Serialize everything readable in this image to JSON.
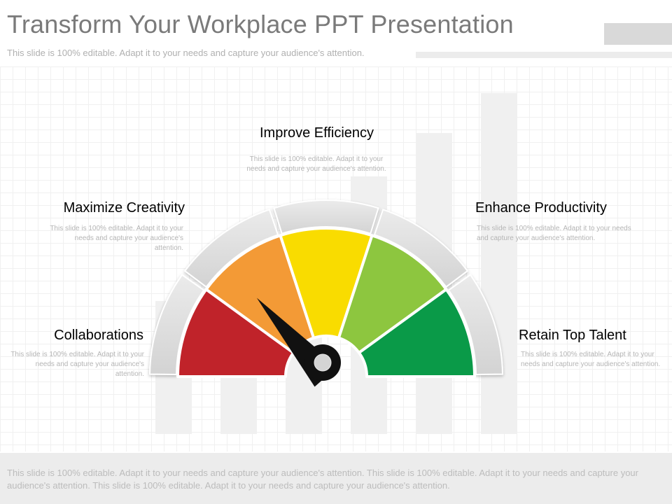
{
  "slide": {
    "title": "Transform Your Workplace PPT Presentation",
    "subtitle": "This slide is 100% editable.  Adapt it to your needs and capture your audience's attention."
  },
  "gauge": {
    "needle_position": 0.27,
    "colors": {
      "red": "#c0232a",
      "orange": "#f39a36",
      "yellow": "#f9dc00",
      "light_green": "#8dc63f",
      "green": "#0a9a48",
      "needle": "#111111"
    }
  },
  "segments": [
    {
      "title": "Collaborations",
      "color": "#c0232a",
      "desc": "This slide is 100% editable. Adapt it to your needs and capture your audience's attention."
    },
    {
      "title": "Maximize  Creativity",
      "color": "#e6822c",
      "desc": "This slide is 100% editable. Adapt it to your needs and capture your audience's attention."
    },
    {
      "title": "Improve Efficiency",
      "color": "#a09000",
      "desc": "This slide is 100% editable. Adapt it to your needs and capture your audience's attention."
    },
    {
      "title": "Enhance Productivity",
      "color": "#5a9a2e",
      "desc": "This slide is 100% editable. Adapt it to your needs and capture your audience's attention."
    },
    {
      "title": "Retain Top Talent",
      "color": "#0a8a40",
      "desc": "This slide is 100% editable. Adapt it to your needs and capture your audience's attention."
    }
  ],
  "footer": {
    "text": "This slide is 100% editable. Adapt it to your needs and capture your audience's attention. This slide is 100% editable. Adapt it to your needs and capture your audience's attention. This slide is 100% editable. Adapt it to your needs and capture your audience's attention."
  }
}
